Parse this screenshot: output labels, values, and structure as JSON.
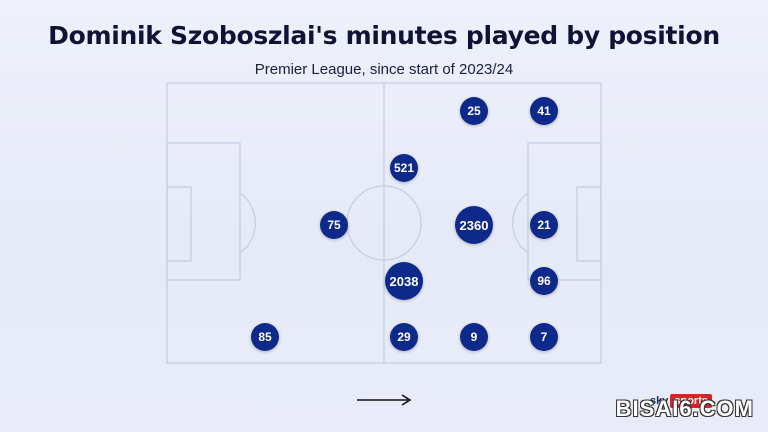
{
  "title": "Dominik Szoboszlai's minutes played by position",
  "subtitle": "Premier League, since start of 2023/24",
  "direction_arrow": "arrow-right-icon",
  "branding": {
    "logo_sky": "sky",
    "logo_sports": "sports",
    "watermark": "BISAI6.COM"
  },
  "colors": {
    "marker": "#0d2a8a",
    "pitch_lines": "#c5cce3",
    "background": "#e8ebf8"
  },
  "positions": {
    "rw_top_far": {
      "minutes": "25"
    },
    "st_top": {
      "minutes": "41"
    },
    "lcm": {
      "minutes": "521"
    },
    "cdm": {
      "minutes": "75"
    },
    "cam": {
      "minutes": "2360"
    },
    "cf": {
      "minutes": "21"
    },
    "rcm": {
      "minutes": "2038"
    },
    "rf": {
      "minutes": "96"
    },
    "rb": {
      "minutes": "85"
    },
    "rm": {
      "minutes": "29"
    },
    "rw": {
      "minutes": "9"
    },
    "rs": {
      "minutes": "7"
    }
  }
}
